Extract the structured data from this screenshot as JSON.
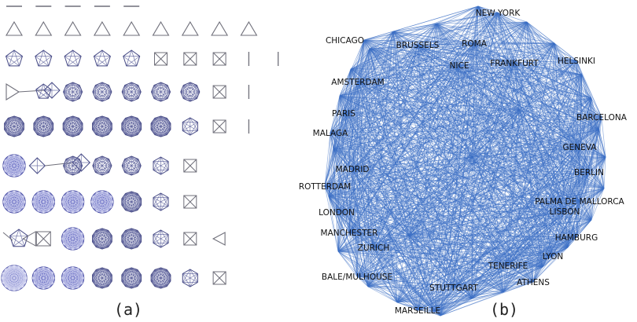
{
  "figure": {
    "panel_a": {
      "caption": "(a)",
      "rows": [
        [
          "dash",
          "dash",
          "dash",
          "dash",
          "dash"
        ],
        [
          "tri",
          "tri",
          "tri",
          "tri",
          "tri",
          "tri",
          "tri",
          "tri",
          "tri"
        ],
        [
          "pent",
          "pent",
          "pent",
          "pent",
          "pent",
          "sq",
          "sq",
          "sq",
          "bar",
          "bar"
        ],
        [
          "tri-link",
          "rh",
          "oct",
          "oct",
          "oct",
          "oct",
          "oct",
          "sq",
          "bar"
        ],
        [
          "dec",
          "dec",
          "dec",
          "dec",
          "dec",
          "dec",
          "hex",
          "sq",
          "bar"
        ],
        [
          "dense",
          "diam-link",
          "oct",
          "oct",
          "oct",
          "hex",
          "sq"
        ],
        [
          "dense",
          "dense",
          "dense",
          "dense",
          "dec",
          "hex",
          "sq"
        ],
        [
          "bowtie",
          "sq-link",
          "dense",
          "dec",
          "dec",
          "hex",
          "sq",
          "tri-left"
        ],
        [
          "dense-full",
          "dense",
          "dense",
          "dec",
          "dec",
          "dec",
          "hex",
          "sq"
        ]
      ]
    },
    "panel_b": {
      "caption": "(b)",
      "edge_color": "#3d6fc4",
      "cities": [
        "NEW YORK",
        "CHICAGO",
        "BRUSSELS",
        "ROMA",
        "NICE",
        "FRANKFURT",
        "HELSINKI",
        "AMSTERDAM",
        "PARIS",
        "BARCELONA",
        "MALAGA",
        "GENEVA",
        "MADRID",
        "BERLIN",
        "ROTTERDAM",
        "PALMA DE MALLORCA",
        "LISBON",
        "LONDON",
        "MANCHESTER",
        "HAMBURG",
        "ZURICH",
        "LYON",
        "TENERIFE",
        "BALE/MULHOUSE",
        "ATHENS",
        "STUTTGART",
        "MARSEILLE"
      ]
    }
  }
}
